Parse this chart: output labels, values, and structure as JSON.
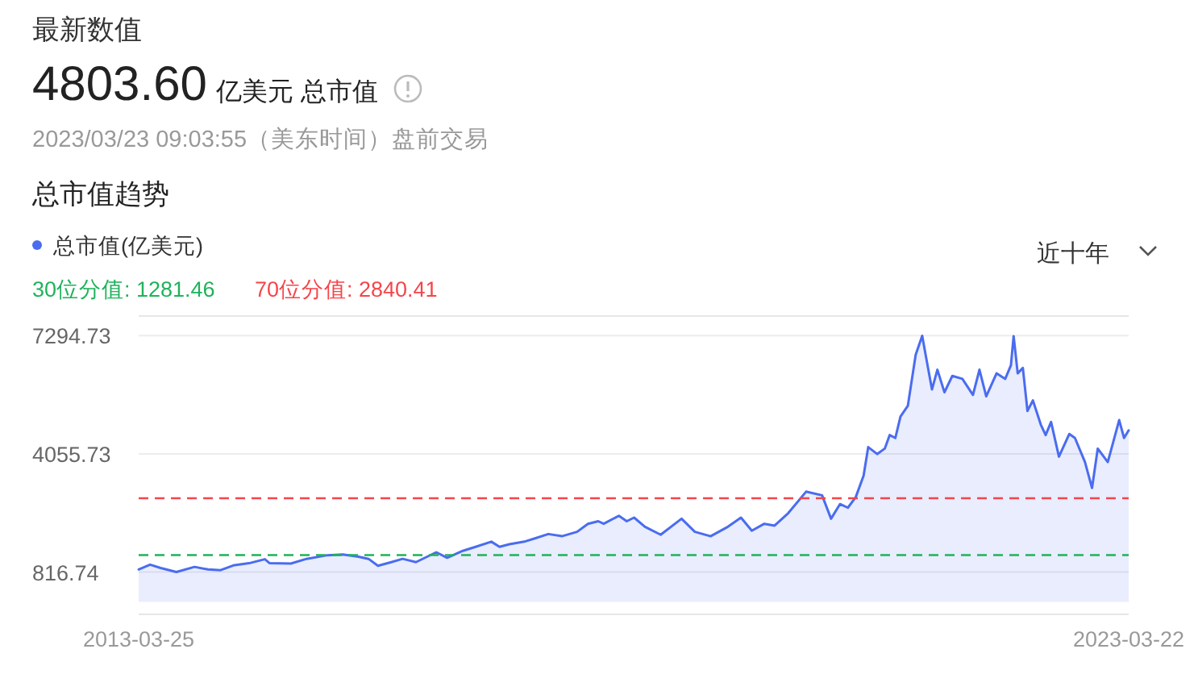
{
  "chart_data": {
    "type": "area",
    "title": "总市值趋势",
    "annotations": [
      "最新数值",
      "4803.60",
      "亿美元 总市值",
      "2023/03/23 09:03:55（美东时间）盘前交易",
      "近十年"
    ],
    "x": [
      "2013-03-25",
      "2013-05-06",
      "2013-06-14",
      "2013-08-11",
      "2013-10-17",
      "2013-12-05",
      "2014-01-21",
      "2014-03-09",
      "2014-05-06",
      "2014-07-03",
      "2014-07-21",
      "2014-10-07",
      "2014-12-04",
      "2015-02-19",
      "2015-04-16",
      "2015-06-13",
      "2015-07-20",
      "2015-08-24",
      "2015-10-07",
      "2015-11-23",
      "2016-01-11",
      "2016-03-26",
      "2016-05-05",
      "2016-07-02",
      "2016-08-18",
      "2016-10-15",
      "2016-11-14",
      "2016-12-21",
      "2017-02-18",
      "2017-03-25",
      "2017-05-13",
      "2017-07-02",
      "2017-08-27",
      "2017-10-06",
      "2017-11-13",
      "2017-12-03",
      "2018-01-28",
      "2018-02-26",
      "2018-03-25",
      "2018-05-04",
      "2018-07-01",
      "2018-09-16",
      "2018-11-04",
      "2019-01-01",
      "2019-03-06",
      "2019-04-23",
      "2019-06-02",
      "2019-07-18",
      "2019-08-25",
      "2019-10-14",
      "2019-12-19",
      "2020-02-16",
      "2020-03-20",
      "2020-04-22",
      "2020-05-21",
      "2020-06-19",
      "2020-07-18",
      "2020-08-04",
      "2020-09-06",
      "2020-10-04",
      "2020-10-22",
      "2020-11-12",
      "2020-12-01",
      "2020-12-28",
      "2021-01-26",
      "2021-02-19",
      "2021-03-09",
      "2021-03-27",
      "2021-04-16",
      "2021-05-12",
      "2021-06-10",
      "2021-07-17",
      "2021-08-25",
      "2021-09-18",
      "2021-10-13",
      "2021-11-20",
      "2021-12-22",
      "2022-01-12",
      "2022-01-22",
      "2022-02-06",
      "2022-02-25",
      "2022-03-14",
      "2022-04-03",
      "2022-05-02",
      "2022-05-20",
      "2022-06-09",
      "2022-07-08",
      "2022-08-15",
      "2022-09-05",
      "2022-10-12",
      "2022-11-07",
      "2022-11-28",
      "2023-01-04",
      "2023-02-15",
      "2023-03-05",
      "2023-03-22"
    ],
    "series": [
      {
        "name": "总市值(亿美元)",
        "color": "#4a6cf0",
        "values": [
          890,
          1020,
          930,
          820,
          960,
          890,
          870,
          1000,
          1060,
          1170,
          1060,
          1050,
          1180,
          1280,
          1300,
          1240,
          1180,
          990,
          1080,
          1180,
          1090,
          1360,
          1210,
          1400,
          1510,
          1650,
          1510,
          1580,
          1660,
          1740,
          1860,
          1800,
          1920,
          2140,
          2210,
          2140,
          2360,
          2210,
          2310,
          2060,
          1840,
          2280,
          1920,
          1800,
          2060,
          2310,
          1950,
          2140,
          2090,
          2430,
          3020,
          2920,
          2280,
          2680,
          2580,
          2870,
          3460,
          4240,
          4050,
          4200,
          4570,
          4490,
          5080,
          5370,
          6770,
          7290,
          6550,
          5820,
          6360,
          5740,
          6190,
          6110,
          5670,
          6360,
          5630,
          6260,
          6110,
          6480,
          7280,
          6260,
          6410,
          5230,
          5520,
          4860,
          4570,
          4930,
          3980,
          4600,
          4490,
          3830,
          3120,
          4200,
          3830,
          4980,
          4490,
          4700
        ]
      }
    ],
    "xlim": [
      "2013-03-25",
      "2023-03-22"
    ],
    "xticks": [
      "2013-03-25",
      "2023-03-22"
    ],
    "ylim": [
      -340,
      7830
    ],
    "yticks": [
      816.74,
      4055.73,
      7294.73
    ],
    "grid": "y",
    "legend": "top left",
    "ref_lines": [
      {
        "axis": "y",
        "value": 1281.46,
        "label": "30位分值: 1281.46",
        "color": "#1fb25a",
        "line_style": "dashed"
      },
      {
        "axis": "y",
        "value": 2840.41,
        "label": "70位分值: 2840.41",
        "color": "#f5454a",
        "line_style": "dashed"
      }
    ]
  }
}
